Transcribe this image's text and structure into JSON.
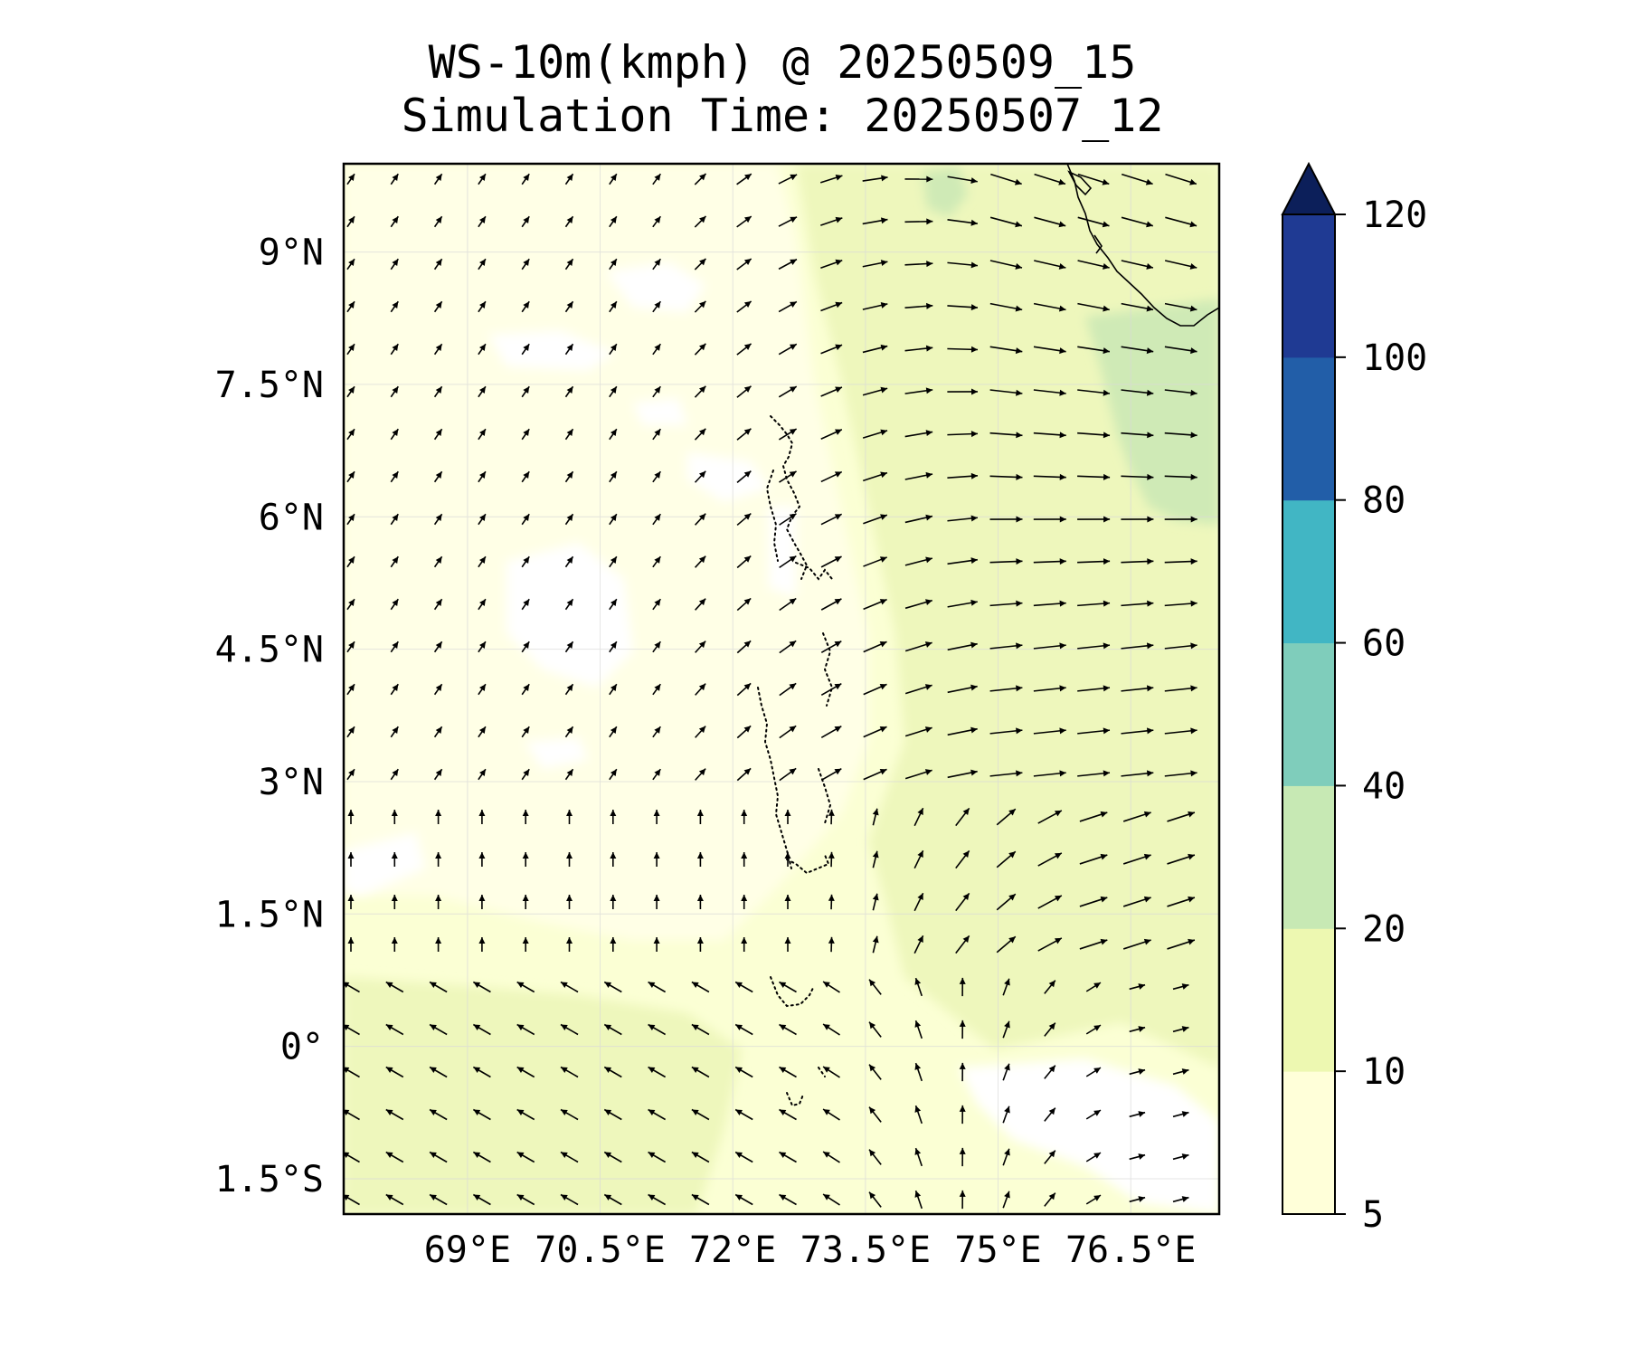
{
  "title": {
    "line1": "WS-10m(kmph) @ 20250509_15",
    "line2": "Simulation Time: 20250507_12"
  },
  "map": {
    "lon_range": [
      67.6,
      77.5
    ],
    "lat_range": [
      -1.9,
      10.0
    ],
    "lat_ticks": [
      {
        "value": 9,
        "label": "9°N"
      },
      {
        "value": 7.5,
        "label": "7.5°N"
      },
      {
        "value": 6,
        "label": "6°N"
      },
      {
        "value": 4.5,
        "label": "4.5°N"
      },
      {
        "value": 3,
        "label": "3°N"
      },
      {
        "value": 1.5,
        "label": "1.5°N"
      },
      {
        "value": 0,
        "label": "0°"
      },
      {
        "value": -1.5,
        "label": "1.5°S"
      }
    ],
    "lon_ticks": [
      {
        "value": 69,
        "label": "69°E"
      },
      {
        "value": 70.5,
        "label": "70.5°E"
      },
      {
        "value": 72,
        "label": "72°E"
      },
      {
        "value": 73.5,
        "label": "73.5°E"
      },
      {
        "value": 75,
        "label": "75°E"
      },
      {
        "value": 76.5,
        "label": "76.5°E"
      }
    ],
    "gridlines": true,
    "features": [
      "coastline-india-southwest-tip",
      "maldives-atolls-dotted"
    ]
  },
  "colorbar": {
    "levels": [
      5,
      10,
      20,
      40,
      60,
      80,
      100,
      120
    ],
    "labels": [
      "5",
      "10",
      "20",
      "40",
      "60",
      "80",
      "100",
      "120"
    ],
    "colors": [
      "#ffffd9",
      "#edf8b1",
      "#c7e9b4",
      "#7fcdbb",
      "#41b6c4",
      "#225ea8",
      "#1f3a93",
      "#0c1f5a"
    ],
    "extend": "max"
  },
  "colors": {
    "field_base": "#fbffd4",
    "field_light": "#ffffe6",
    "field_mid": "#eef7bc",
    "field_high": "#cfeab6",
    "calm": "#ffffff",
    "arrow": "#000000"
  }
}
